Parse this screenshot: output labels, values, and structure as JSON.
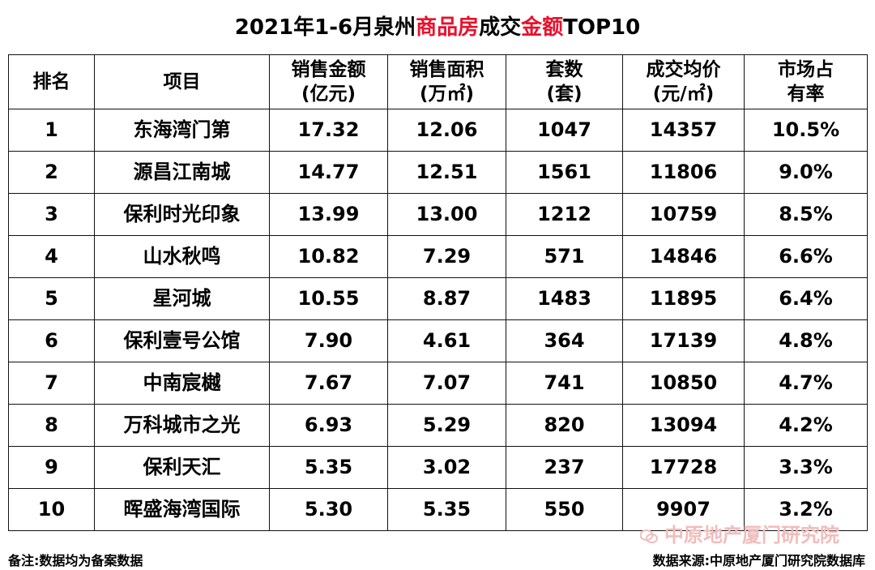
{
  "title": {
    "part1": "2021年1-6月泉州",
    "red1": "商品房",
    "part2": "成交",
    "red2": "金额",
    "part3": "TOP10"
  },
  "columns": [
    {
      "line1": "排名",
      "line2": ""
    },
    {
      "line1": "项目",
      "line2": ""
    },
    {
      "line1": "销售金额",
      "line2": "(亿元)"
    },
    {
      "line1": "销售面积",
      "line2": "(万㎡)"
    },
    {
      "line1": "套数",
      "line2": "(套)"
    },
    {
      "line1": "成交均价",
      "line2": "(元/㎡)"
    },
    {
      "line1": "市场占",
      "line2": "有率"
    }
  ],
  "rows": [
    {
      "rank": "1",
      "project": "东海湾门第",
      "amount": "17.32",
      "area": "12.06",
      "units": "1047",
      "price": "14357",
      "share": "10.5%"
    },
    {
      "rank": "2",
      "project": "源昌江南城",
      "amount": "14.77",
      "area": "12.51",
      "units": "1561",
      "price": "11806",
      "share": "9.0%"
    },
    {
      "rank": "3",
      "project": "保利时光印象",
      "amount": "13.99",
      "area": "13.00",
      "units": "1212",
      "price": "10759",
      "share": "8.5%"
    },
    {
      "rank": "4",
      "project": "山水秋鸣",
      "amount": "10.82",
      "area": "7.29",
      "units": "571",
      "price": "14846",
      "share": "6.6%"
    },
    {
      "rank": "5",
      "project": "星河城",
      "amount": "10.55",
      "area": "8.87",
      "units": "1483",
      "price": "11895",
      "share": "6.4%"
    },
    {
      "rank": "6",
      "project": "保利壹号公馆",
      "amount": "7.90",
      "area": "4.61",
      "units": "364",
      "price": "17139",
      "share": "4.8%"
    },
    {
      "rank": "7",
      "project": "中南宸樾",
      "amount": "7.67",
      "area": "7.07",
      "units": "741",
      "price": "10850",
      "share": "4.7%"
    },
    {
      "rank": "8",
      "project": "万科城市之光",
      "amount": "6.93",
      "area": "5.29",
      "units": "820",
      "price": "13094",
      "share": "4.2%"
    },
    {
      "rank": "9",
      "project": "保利天汇",
      "amount": "5.35",
      "area": "3.02",
      "units": "237",
      "price": "17728",
      "share": "3.3%"
    },
    {
      "rank": "10",
      "project": "晖盛海湾国际",
      "amount": "5.30",
      "area": "5.35",
      "units": "550",
      "price": "9907",
      "share": "3.2%"
    }
  ],
  "footer": {
    "note": "备注:数据均为备案数据",
    "source": "数据来源:中原地产厦门研究院数据库"
  },
  "watermark": {
    "text": "中原地产厦门研究院",
    "icon": "wechat-icon"
  },
  "colors": {
    "accent": "#e8112d",
    "watermark": "#f2bcbc"
  }
}
